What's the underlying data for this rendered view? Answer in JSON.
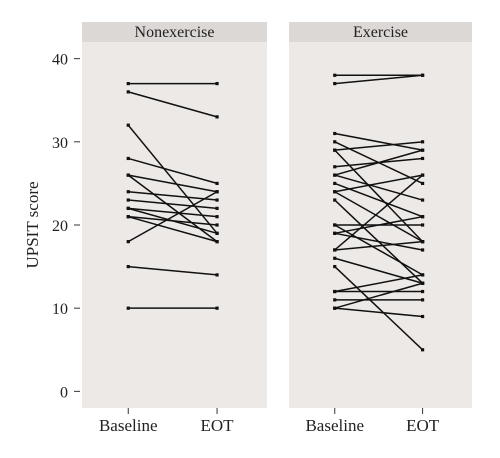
{
  "chart_data": {
    "type": "line",
    "ylabel": "UPSIT score",
    "ylim": [
      -2,
      42
    ],
    "yticks": [
      0,
      10,
      20,
      30,
      40
    ],
    "x": [
      "Baseline",
      "EOT"
    ],
    "grid": false,
    "colors": {
      "panel_bg": "#ede9e7",
      "strip_bg": "#dcd8d6",
      "line": "#111111",
      "text": "#222222"
    },
    "panels": [
      {
        "title": "Nonexercise",
        "pairs": [
          [
            37,
            37
          ],
          [
            36,
            33
          ],
          [
            32,
            19
          ],
          [
            28,
            25
          ],
          [
            26,
            24
          ],
          [
            26,
            18
          ],
          [
            24,
            23
          ],
          [
            23,
            22
          ],
          [
            22,
            21
          ],
          [
            22,
            19
          ],
          [
            21,
            20
          ],
          [
            21,
            18
          ],
          [
            18,
            24
          ],
          [
            15,
            14
          ],
          [
            10,
            10
          ]
        ]
      },
      {
        "title": "Exercise",
        "pairs": [
          [
            38,
            38
          ],
          [
            37,
            38
          ],
          [
            31,
            29
          ],
          [
            30,
            25
          ],
          [
            29,
            30
          ],
          [
            29,
            18
          ],
          [
            27,
            28
          ],
          [
            26,
            29
          ],
          [
            26,
            23
          ],
          [
            25,
            21
          ],
          [
            24,
            26
          ],
          [
            24,
            18
          ],
          [
            23,
            13
          ],
          [
            20,
            20
          ],
          [
            20,
            14
          ],
          [
            19,
            17
          ],
          [
            19,
            21
          ],
          [
            17,
            26
          ],
          [
            17,
            18
          ],
          [
            16,
            13
          ],
          [
            15,
            5
          ],
          [
            12,
            14
          ],
          [
            12,
            12
          ],
          [
            11,
            11
          ],
          [
            10,
            13
          ],
          [
            10,
            9
          ]
        ]
      }
    ]
  }
}
